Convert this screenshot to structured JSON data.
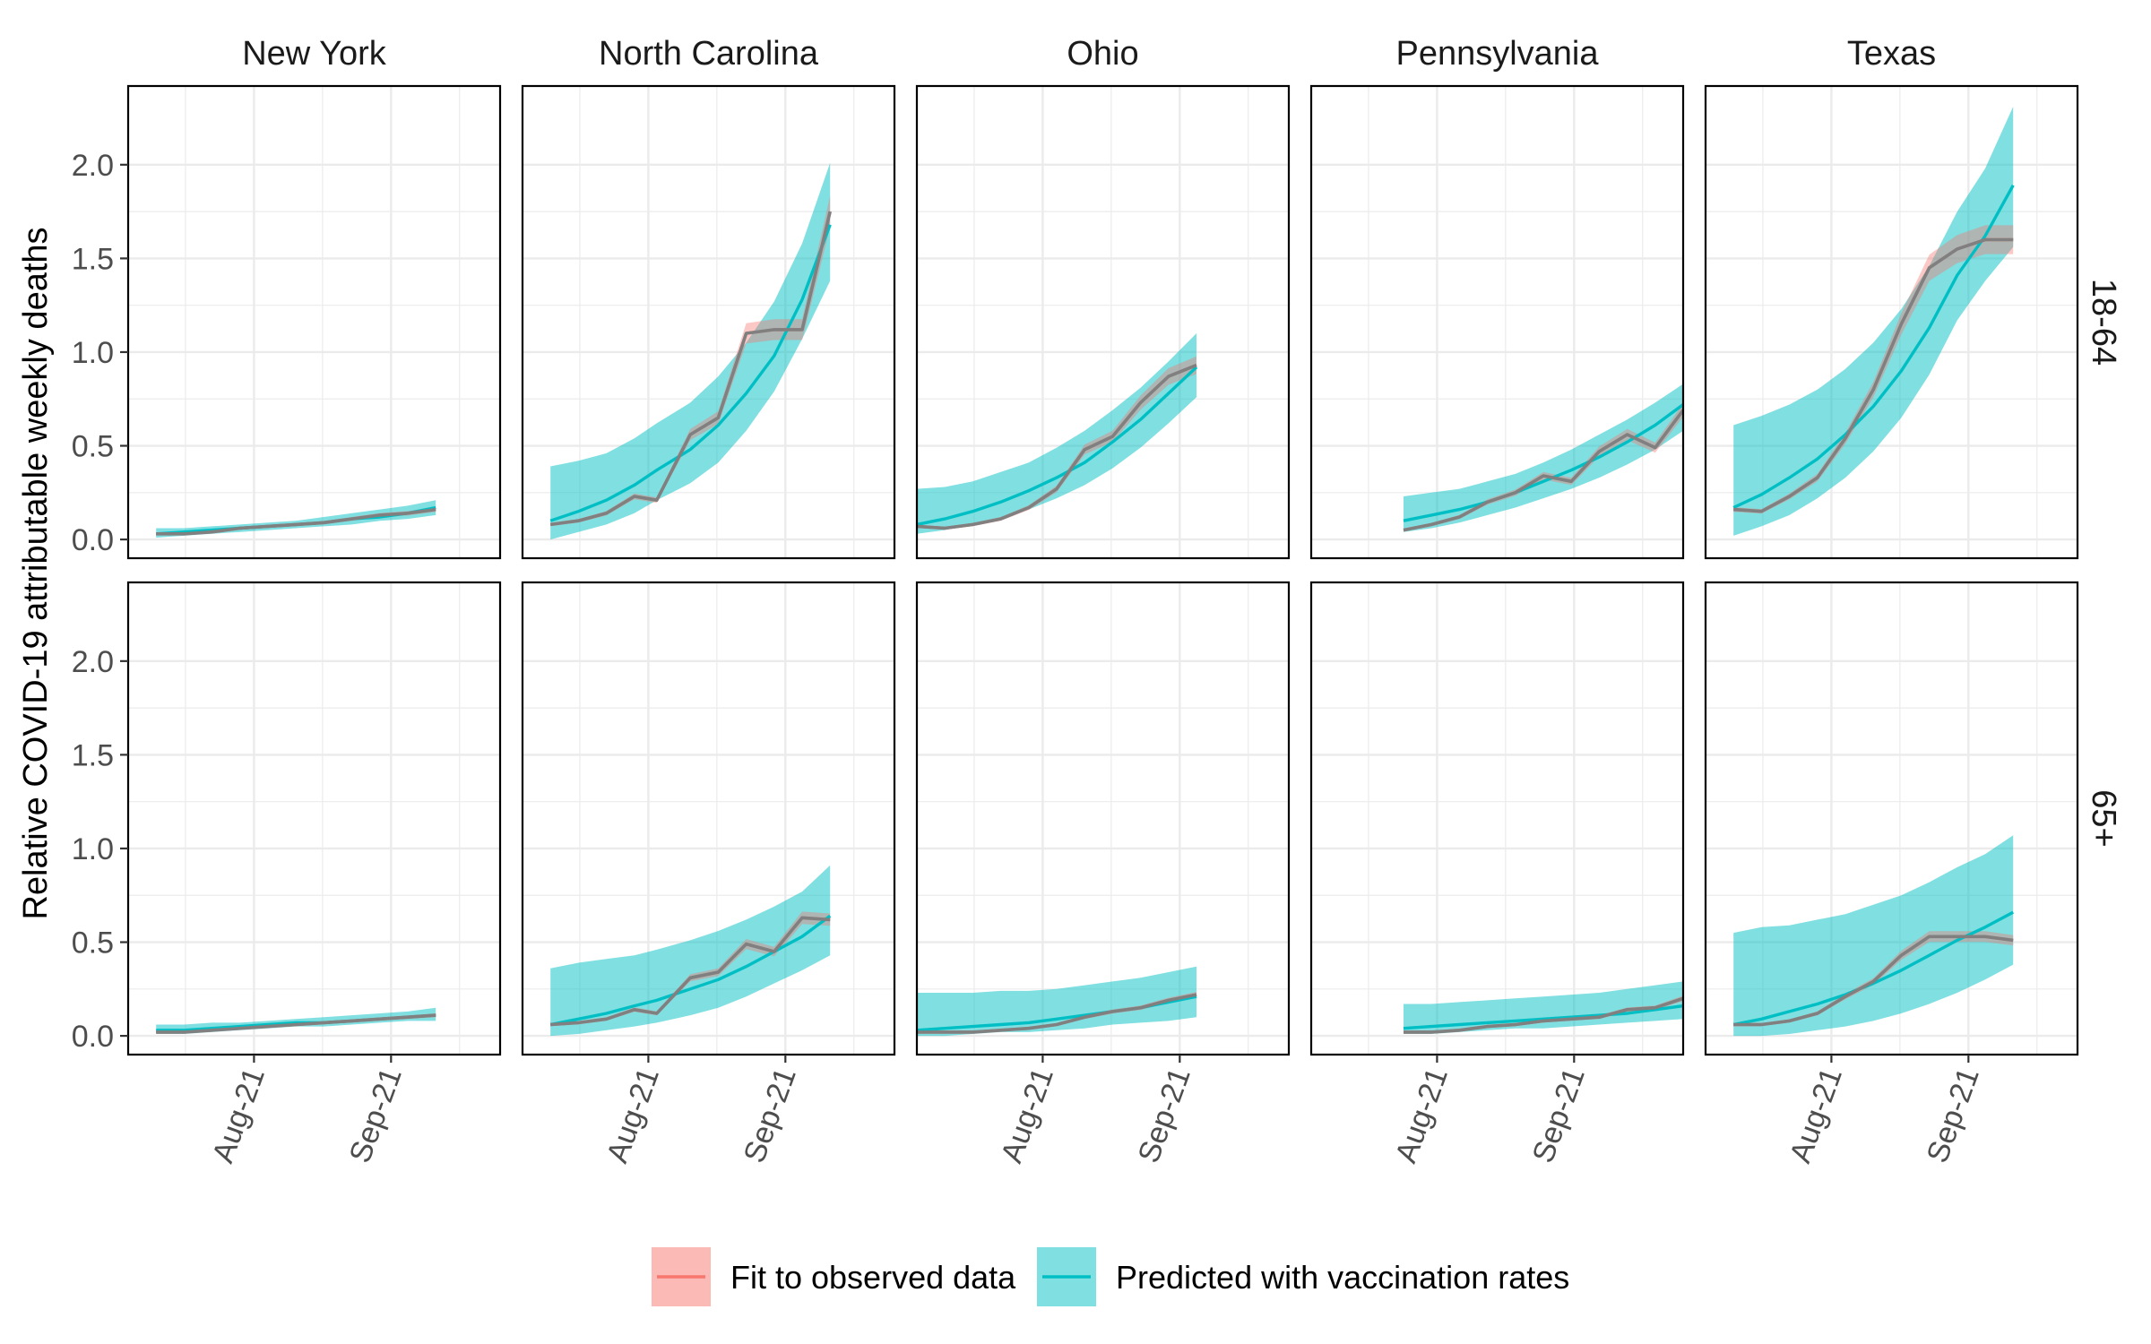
{
  "chart_data": {
    "type": "line",
    "ylabel": "Relative COVID-19 attributable weekly deaths",
    "ylim": [
      -0.1,
      2.42
    ],
    "yticks": [
      0.0,
      0.5,
      1.0,
      1.5,
      2.0
    ],
    "ytick_labels": [
      "0.0",
      "0.5",
      "1.0",
      "1.5",
      "2.0"
    ],
    "x_unit": "weeks (0 = 1 Aug 2021)",
    "xlim": [
      -4.5,
      8.8
    ],
    "xticks": [
      0,
      4.9
    ],
    "xtick_labels": [
      "Aug-21",
      "Sep-21"
    ],
    "legend": [
      {
        "label": "Fit to observed data",
        "color": "#F8766D"
      },
      {
        "label": "Predicted with vaccination rates",
        "color": "#00BFC4"
      }
    ],
    "colors": {
      "observed_line": "#808080",
      "fit": "#F8766D",
      "predicted": "#00BFC4",
      "gridline": "#ebebeb",
      "panel_border": "#000000"
    },
    "col_labels": [
      "New York",
      "North Carolina",
      "Ohio",
      "Pennsylvania",
      "Texas"
    ],
    "row_labels": [
      "18-64",
      "65+"
    ],
    "panels": [
      {
        "state": "New York",
        "age": "18-64",
        "x": [
          -3.5,
          -2.5,
          -1.5,
          -0.5,
          0.5,
          1.5,
          2.5,
          3.5,
          4.5,
          5.5,
          6.5
        ],
        "observed": [
          0.03,
          0.03,
          0.04,
          0.06,
          0.07,
          0.08,
          0.09,
          0.11,
          0.13,
          0.14,
          0.16
        ],
        "predicted": [
          0.03,
          0.04,
          0.05,
          0.06,
          0.07,
          0.08,
          0.09,
          0.11,
          0.12,
          0.14,
          0.17
        ],
        "lower": [
          0.01,
          0.02,
          0.03,
          0.04,
          0.05,
          0.06,
          0.07,
          0.08,
          0.1,
          0.11,
          0.13
        ],
        "upper": [
          0.06,
          0.06,
          0.07,
          0.08,
          0.09,
          0.1,
          0.12,
          0.14,
          0.16,
          0.18,
          0.21
        ]
      },
      {
        "state": "North Carolina",
        "age": "18-64",
        "x": [
          -3.5,
          -2.5,
          -1.5,
          -0.5,
          0.3,
          1.5,
          2.5,
          3.5,
          4.5,
          5.5,
          6.5
        ],
        "observed": [
          0.08,
          0.1,
          0.14,
          0.23,
          0.21,
          0.56,
          0.65,
          1.1,
          1.12,
          1.12,
          1.75
        ],
        "predicted": [
          0.1,
          0.15,
          0.21,
          0.29,
          0.37,
          0.48,
          0.61,
          0.78,
          0.98,
          1.28,
          1.68
        ],
        "lower": [
          0.0,
          0.04,
          0.08,
          0.14,
          0.21,
          0.3,
          0.41,
          0.58,
          0.79,
          1.07,
          1.38
        ],
        "upper": [
          0.39,
          0.42,
          0.46,
          0.54,
          0.62,
          0.73,
          0.87,
          1.05,
          1.27,
          1.58,
          2.01
        ]
      },
      {
        "state": "Ohio",
        "age": "18-64",
        "x": [
          -4.5,
          -3.5,
          -2.5,
          -1.5,
          -0.5,
          0.5,
          1.5,
          2.5,
          3.5,
          4.5,
          5.5
        ],
        "observed": [
          0.07,
          0.06,
          0.08,
          0.11,
          0.17,
          0.27,
          0.48,
          0.55,
          0.73,
          0.87,
          0.93
        ],
        "predicted": [
          0.08,
          0.11,
          0.15,
          0.2,
          0.26,
          0.33,
          0.41,
          0.52,
          0.64,
          0.78,
          0.92
        ],
        "lower": [
          0.03,
          0.05,
          0.08,
          0.11,
          0.16,
          0.22,
          0.29,
          0.38,
          0.49,
          0.62,
          0.76
        ],
        "upper": [
          0.27,
          0.28,
          0.31,
          0.36,
          0.41,
          0.49,
          0.58,
          0.69,
          0.81,
          0.95,
          1.1
        ]
      },
      {
        "state": "Pennsylvania",
        "age": "18-64",
        "x": [
          -1.2,
          -0.2,
          0.8,
          1.8,
          2.8,
          3.8,
          4.8,
          5.8,
          6.8,
          7.8,
          8.8
        ],
        "observed": [
          0.05,
          0.08,
          0.12,
          0.2,
          0.25,
          0.34,
          0.31,
          0.47,
          0.56,
          0.49,
          0.69
        ],
        "predicted": [
          0.1,
          0.13,
          0.16,
          0.2,
          0.25,
          0.31,
          0.37,
          0.44,
          0.52,
          0.61,
          0.72
        ],
        "lower": [
          0.04,
          0.06,
          0.09,
          0.13,
          0.17,
          0.22,
          0.27,
          0.33,
          0.4,
          0.48,
          0.58
        ],
        "upper": [
          0.23,
          0.25,
          0.27,
          0.31,
          0.35,
          0.41,
          0.48,
          0.56,
          0.64,
          0.73,
          0.83
        ]
      },
      {
        "state": "Texas",
        "age": "18-64",
        "x": [
          -3.5,
          -2.5,
          -1.5,
          -0.5,
          0.5,
          1.5,
          2.5,
          3.5,
          4.5,
          5.5,
          6.5
        ],
        "observed": [
          0.16,
          0.15,
          0.23,
          0.33,
          0.54,
          0.8,
          1.15,
          1.45,
          1.55,
          1.6,
          1.6
        ],
        "predicted": [
          0.17,
          0.24,
          0.33,
          0.43,
          0.56,
          0.71,
          0.9,
          1.13,
          1.41,
          1.62,
          1.89
        ],
        "lower": [
          0.02,
          0.07,
          0.13,
          0.22,
          0.33,
          0.47,
          0.65,
          0.88,
          1.17,
          1.38,
          1.56
        ],
        "upper": [
          0.61,
          0.66,
          0.72,
          0.8,
          0.91,
          1.05,
          1.23,
          1.46,
          1.75,
          1.98,
          2.31
        ]
      },
      {
        "state": "New York",
        "age": "65+",
        "x": [
          -3.5,
          -2.5,
          -1.5,
          -0.5,
          0.5,
          1.5,
          2.5,
          3.5,
          4.5,
          5.5,
          6.5
        ],
        "observed": [
          0.02,
          0.02,
          0.03,
          0.04,
          0.05,
          0.06,
          0.07,
          0.08,
          0.09,
          0.1,
          0.11
        ],
        "predicted": [
          0.03,
          0.03,
          0.04,
          0.05,
          0.06,
          0.07,
          0.07,
          0.08,
          0.09,
          0.1,
          0.11
        ],
        "lower": [
          0.01,
          0.01,
          0.02,
          0.03,
          0.04,
          0.05,
          0.05,
          0.06,
          0.07,
          0.08,
          0.08
        ],
        "upper": [
          0.06,
          0.06,
          0.07,
          0.07,
          0.08,
          0.09,
          0.1,
          0.11,
          0.12,
          0.13,
          0.15
        ]
      },
      {
        "state": "North Carolina",
        "age": "65+",
        "x": [
          -3.5,
          -2.5,
          -1.5,
          -0.5,
          0.3,
          1.5,
          2.5,
          3.5,
          4.5,
          5.5,
          6.5
        ],
        "observed": [
          0.06,
          0.07,
          0.09,
          0.14,
          0.12,
          0.31,
          0.34,
          0.49,
          0.45,
          0.63,
          0.62
        ],
        "predicted": [
          0.06,
          0.09,
          0.12,
          0.16,
          0.19,
          0.25,
          0.3,
          0.37,
          0.45,
          0.53,
          0.64
        ],
        "lower": [
          0.0,
          0.01,
          0.03,
          0.05,
          0.07,
          0.11,
          0.15,
          0.21,
          0.28,
          0.35,
          0.43
        ],
        "upper": [
          0.36,
          0.39,
          0.41,
          0.43,
          0.46,
          0.51,
          0.56,
          0.62,
          0.69,
          0.77,
          0.91
        ]
      },
      {
        "state": "Ohio",
        "age": "65+",
        "x": [
          -4.5,
          -3.5,
          -2.5,
          -1.5,
          -0.5,
          0.5,
          1.5,
          2.5,
          3.5,
          4.5,
          5.5
        ],
        "observed": [
          0.02,
          0.02,
          0.02,
          0.03,
          0.04,
          0.06,
          0.1,
          0.13,
          0.15,
          0.19,
          0.22
        ],
        "predicted": [
          0.03,
          0.04,
          0.05,
          0.06,
          0.07,
          0.09,
          0.11,
          0.13,
          0.15,
          0.18,
          0.21
        ],
        "lower": [
          0.0,
          0.0,
          0.01,
          0.02,
          0.02,
          0.03,
          0.04,
          0.06,
          0.07,
          0.08,
          0.1
        ],
        "upper": [
          0.23,
          0.23,
          0.23,
          0.24,
          0.24,
          0.25,
          0.27,
          0.29,
          0.31,
          0.34,
          0.37
        ]
      },
      {
        "state": "Pennsylvania",
        "age": "65+",
        "x": [
          -1.2,
          -0.2,
          0.8,
          1.8,
          2.8,
          3.8,
          4.8,
          5.8,
          6.8,
          7.8,
          8.8
        ],
        "observed": [
          0.02,
          0.02,
          0.03,
          0.05,
          0.06,
          0.08,
          0.09,
          0.1,
          0.14,
          0.15,
          0.2
        ],
        "predicted": [
          0.04,
          0.05,
          0.06,
          0.07,
          0.08,
          0.09,
          0.1,
          0.11,
          0.12,
          0.14,
          0.16
        ],
        "lower": [
          0.01,
          0.01,
          0.02,
          0.03,
          0.04,
          0.04,
          0.05,
          0.06,
          0.07,
          0.08,
          0.09
        ],
        "upper": [
          0.17,
          0.17,
          0.18,
          0.19,
          0.2,
          0.21,
          0.22,
          0.23,
          0.25,
          0.27,
          0.29
        ]
      },
      {
        "state": "Texas",
        "age": "65+",
        "x": [
          -3.5,
          -2.5,
          -1.5,
          -0.5,
          0.5,
          1.5,
          2.5,
          3.5,
          4.5,
          5.5,
          6.5
        ],
        "observed": [
          0.06,
          0.06,
          0.08,
          0.12,
          0.21,
          0.29,
          0.43,
          0.53,
          0.53,
          0.53,
          0.51
        ],
        "predicted": [
          0.06,
          0.09,
          0.13,
          0.17,
          0.22,
          0.28,
          0.35,
          0.43,
          0.51,
          0.58,
          0.66
        ],
        "lower": [
          0.0,
          0.0,
          0.01,
          0.03,
          0.05,
          0.08,
          0.12,
          0.17,
          0.23,
          0.3,
          0.38
        ],
        "upper": [
          0.55,
          0.58,
          0.59,
          0.62,
          0.65,
          0.7,
          0.75,
          0.82,
          0.9,
          0.97,
          1.07
        ]
      }
    ]
  }
}
